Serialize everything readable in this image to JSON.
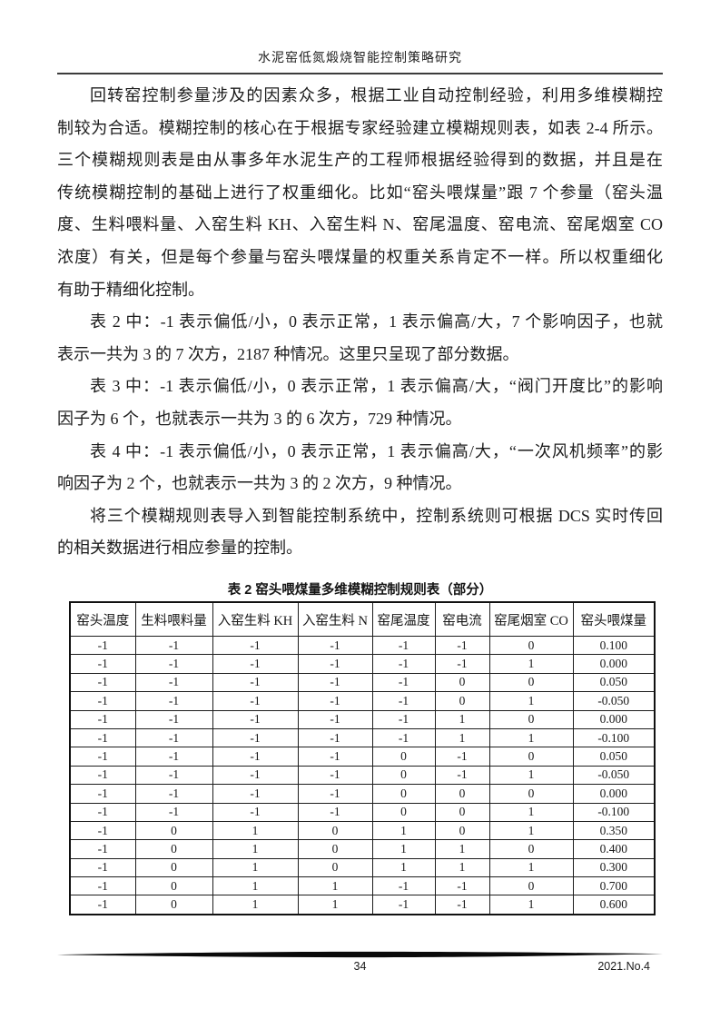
{
  "header": {
    "title": "水泥窑低氮煅烧智能控制策略研究"
  },
  "paragraphs": [
    {
      "lines": [
        "回转窑控制参量涉及的因素众多，根据工业自动控制经验，利用多维模糊控",
        "制较为合适。模糊控制的核心在于根据专家经验建立模糊规则表，如表 2-4 所示。",
        "三个模糊规则表是由从事多年水泥生产的工程师根据经验得到的数据，并且是在",
        "传统模糊控制的基础上进行了权重细化。比如“窑头喂煤量”跟 7 个参量（窑头温",
        "度、生料喂料量、入窑生料 KH、入窑生料 N、窑尾温度、窑电流、窑尾烟室 CO",
        "浓度）有关，但是每个参量与窑头喂煤量的权重关系肯定不一样。所以权重细化",
        "有助于精细化控制。"
      ]
    },
    {
      "lines": [
        "表 2 中：-1 表示偏低/小，0 表示正常，1 表示偏高/大，7 个影响因子，也就",
        "表示一共为 3 的 7 次方，2187 种情况。这里只呈现了部分数据。"
      ]
    },
    {
      "lines": [
        "表 3 中：-1 表示偏低/小，0 表示正常，1 表示偏高/大，“阀门开度比”的影响",
        "因子为 6 个，也就表示一共为 3 的 6 次方，729 种情况。"
      ]
    },
    {
      "lines": [
        "表 4 中：-1 表示偏低/小，0 表示正常，1 表示偏高/大，“一次风机频率”的影",
        "响因子为 2 个，也就表示一共为 3 的 2 次方，9 种情况。"
      ]
    },
    {
      "lines": [
        "将三个模糊规则表导入到智能控制系统中，控制系统则可根据 DCS 实时传回",
        "的相关数据进行相应参量的控制。"
      ]
    }
  ],
  "table": {
    "caption": "表 2 窑头喂煤量多维模糊控制规则表（部分）",
    "columns": [
      "窑头温度",
      "生料喂料量",
      "入窑生料 KH",
      "入窑生料 N",
      "窑尾温度",
      "窑电流",
      "窑尾烟室 CO",
      "窑头喂煤量"
    ],
    "rows": [
      [
        "-1",
        "-1",
        "-1",
        "-1",
        "-1",
        "-1",
        "0",
        "0.100"
      ],
      [
        "-1",
        "-1",
        "-1",
        "-1",
        "-1",
        "-1",
        "1",
        "0.000"
      ],
      [
        "-1",
        "-1",
        "-1",
        "-1",
        "-1",
        "0",
        "0",
        "0.050"
      ],
      [
        "-1",
        "-1",
        "-1",
        "-1",
        "-1",
        "0",
        "1",
        "-0.050"
      ],
      [
        "-1",
        "-1",
        "-1",
        "-1",
        "-1",
        "1",
        "0",
        "0.000"
      ],
      [
        "-1",
        "-1",
        "-1",
        "-1",
        "-1",
        "1",
        "1",
        "-0.100"
      ],
      [
        "-1",
        "-1",
        "-1",
        "-1",
        "0",
        "-1",
        "0",
        "0.050"
      ],
      [
        "-1",
        "-1",
        "-1",
        "-1",
        "0",
        "-1",
        "1",
        "-0.050"
      ],
      [
        "-1",
        "-1",
        "-1",
        "-1",
        "0",
        "0",
        "0",
        "0.000"
      ],
      [
        "-1",
        "-1",
        "-1",
        "-1",
        "0",
        "0",
        "1",
        "-0.100"
      ],
      [
        "-1",
        "0",
        "1",
        "0",
        "1",
        "0",
        "1",
        "0.350"
      ],
      [
        "-1",
        "0",
        "1",
        "0",
        "1",
        "1",
        "0",
        "0.400"
      ],
      [
        "-1",
        "0",
        "1",
        "0",
        "1",
        "1",
        "1",
        "0.300"
      ],
      [
        "-1",
        "0",
        "1",
        "1",
        "-1",
        "-1",
        "0",
        "0.700"
      ],
      [
        "-1",
        "0",
        "1",
        "1",
        "-1",
        "-1",
        "1",
        "0.600"
      ]
    ]
  },
  "footer": {
    "page_number": "34",
    "issue": "2021.No.4"
  },
  "colors": {
    "text": "#1c1c1c",
    "table_border": "#1d1d1d",
    "footer_bar": "#0a0a0a"
  }
}
